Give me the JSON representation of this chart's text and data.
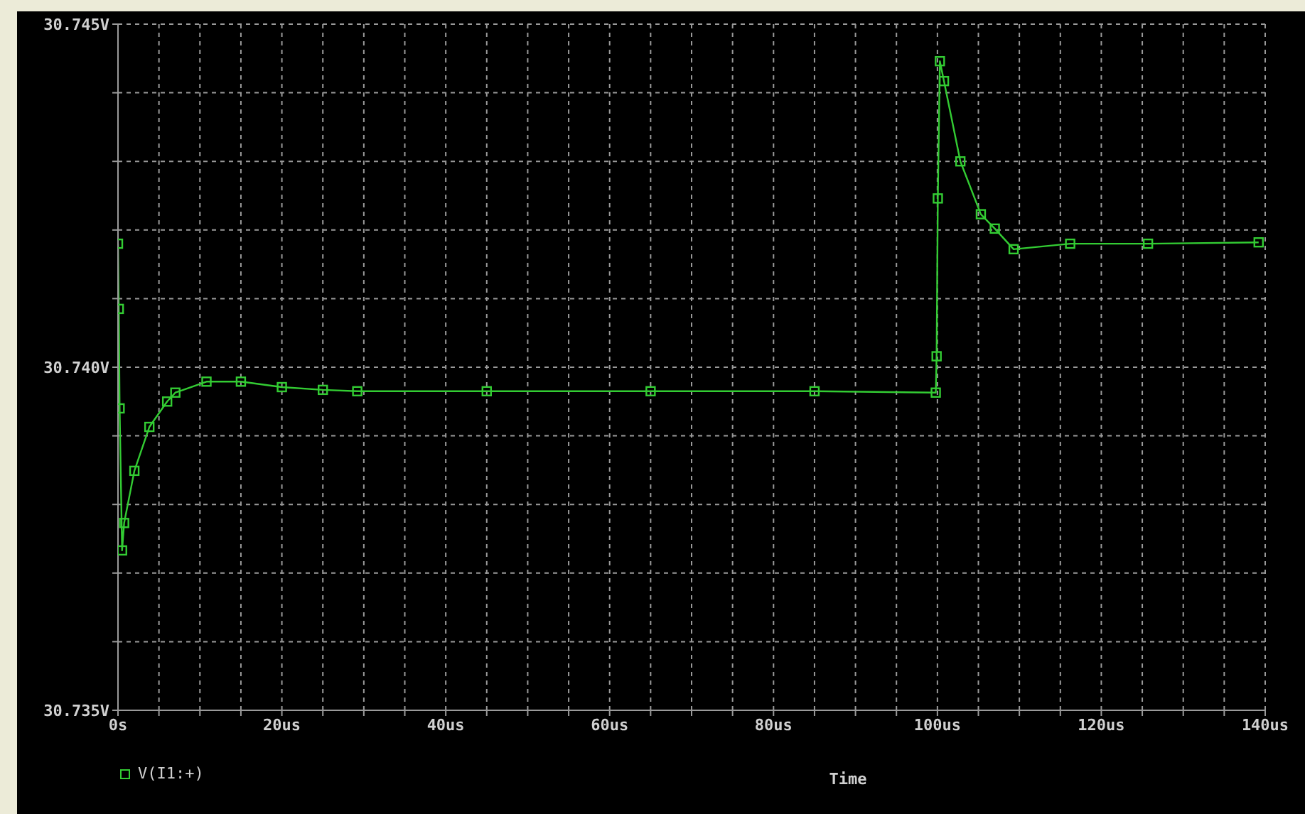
{
  "chart_data": {
    "type": "line",
    "xlabel": "Time",
    "x": [
      0,
      0.1,
      0.2,
      0.5,
      0.75,
      2,
      3.83,
      6,
      7,
      10.8,
      15,
      20,
      25,
      29.2,
      45,
      65,
      85,
      99.8,
      99.9,
      100.05,
      100.3,
      100.8,
      102.8,
      105.3,
      107,
      109.3,
      116.2,
      125.7,
      139.2
    ],
    "series": [
      {
        "name": "V(I1:+)",
        "color": "#33cc33",
        "values": [
          30.7418,
          30.74085,
          30.7394,
          30.73733,
          30.73773,
          30.73849,
          30.73913,
          30.7395,
          30.73963,
          30.73979,
          30.73979,
          30.73971,
          30.73967,
          30.73965,
          30.73965,
          30.73965,
          30.73965,
          30.73963,
          30.74016,
          30.74246,
          30.74446,
          30.74417,
          30.743,
          30.74223,
          30.74202,
          30.74172,
          30.7418,
          30.7418,
          30.74182
        ]
      }
    ],
    "xlim": [
      0,
      140
    ],
    "xticks": [
      {
        "value": 0,
        "label": "0s"
      },
      {
        "value": 5,
        "label": null
      },
      {
        "value": 10,
        "label": null
      },
      {
        "value": 15,
        "label": null
      },
      {
        "value": 20,
        "label": "20us"
      },
      {
        "value": 25,
        "label": null
      },
      {
        "value": 30,
        "label": null
      },
      {
        "value": 35,
        "label": null
      },
      {
        "value": 40,
        "label": "40us"
      },
      {
        "value": 45,
        "label": null
      },
      {
        "value": 50,
        "label": null
      },
      {
        "value": 55,
        "label": null
      },
      {
        "value": 60,
        "label": "60us"
      },
      {
        "value": 65,
        "label": null
      },
      {
        "value": 70,
        "label": null
      },
      {
        "value": 75,
        "label": null
      },
      {
        "value": 80,
        "label": "80us"
      },
      {
        "value": 85,
        "label": null
      },
      {
        "value": 90,
        "label": null
      },
      {
        "value": 95,
        "label": null
      },
      {
        "value": 100,
        "label": "100us"
      },
      {
        "value": 105,
        "label": null
      },
      {
        "value": 110,
        "label": null
      },
      {
        "value": 115,
        "label": null
      },
      {
        "value": 120,
        "label": "120us"
      },
      {
        "value": 125,
        "label": null
      },
      {
        "value": 130,
        "label": null
      },
      {
        "value": 135,
        "label": null
      },
      {
        "value": 140,
        "label": "140us"
      }
    ],
    "ylim": [
      30.735,
      30.745
    ],
    "yticks": [
      {
        "value": 30.735,
        "label": "30.735V"
      },
      {
        "value": 30.736,
        "label": null
      },
      {
        "value": 30.737,
        "label": null
      },
      {
        "value": 30.738,
        "label": null
      },
      {
        "value": 30.739,
        "label": null
      },
      {
        "value": 30.74,
        "label": "30.740V"
      },
      {
        "value": 30.741,
        "label": null
      },
      {
        "value": 30.742,
        "label": null
      },
      {
        "value": 30.743,
        "label": null
      },
      {
        "value": 30.744,
        "label": null
      },
      {
        "value": 30.745,
        "label": "30.745V"
      }
    ],
    "grid": true,
    "legend": "bottom left",
    "marker": "square",
    "line_style": "solid"
  }
}
